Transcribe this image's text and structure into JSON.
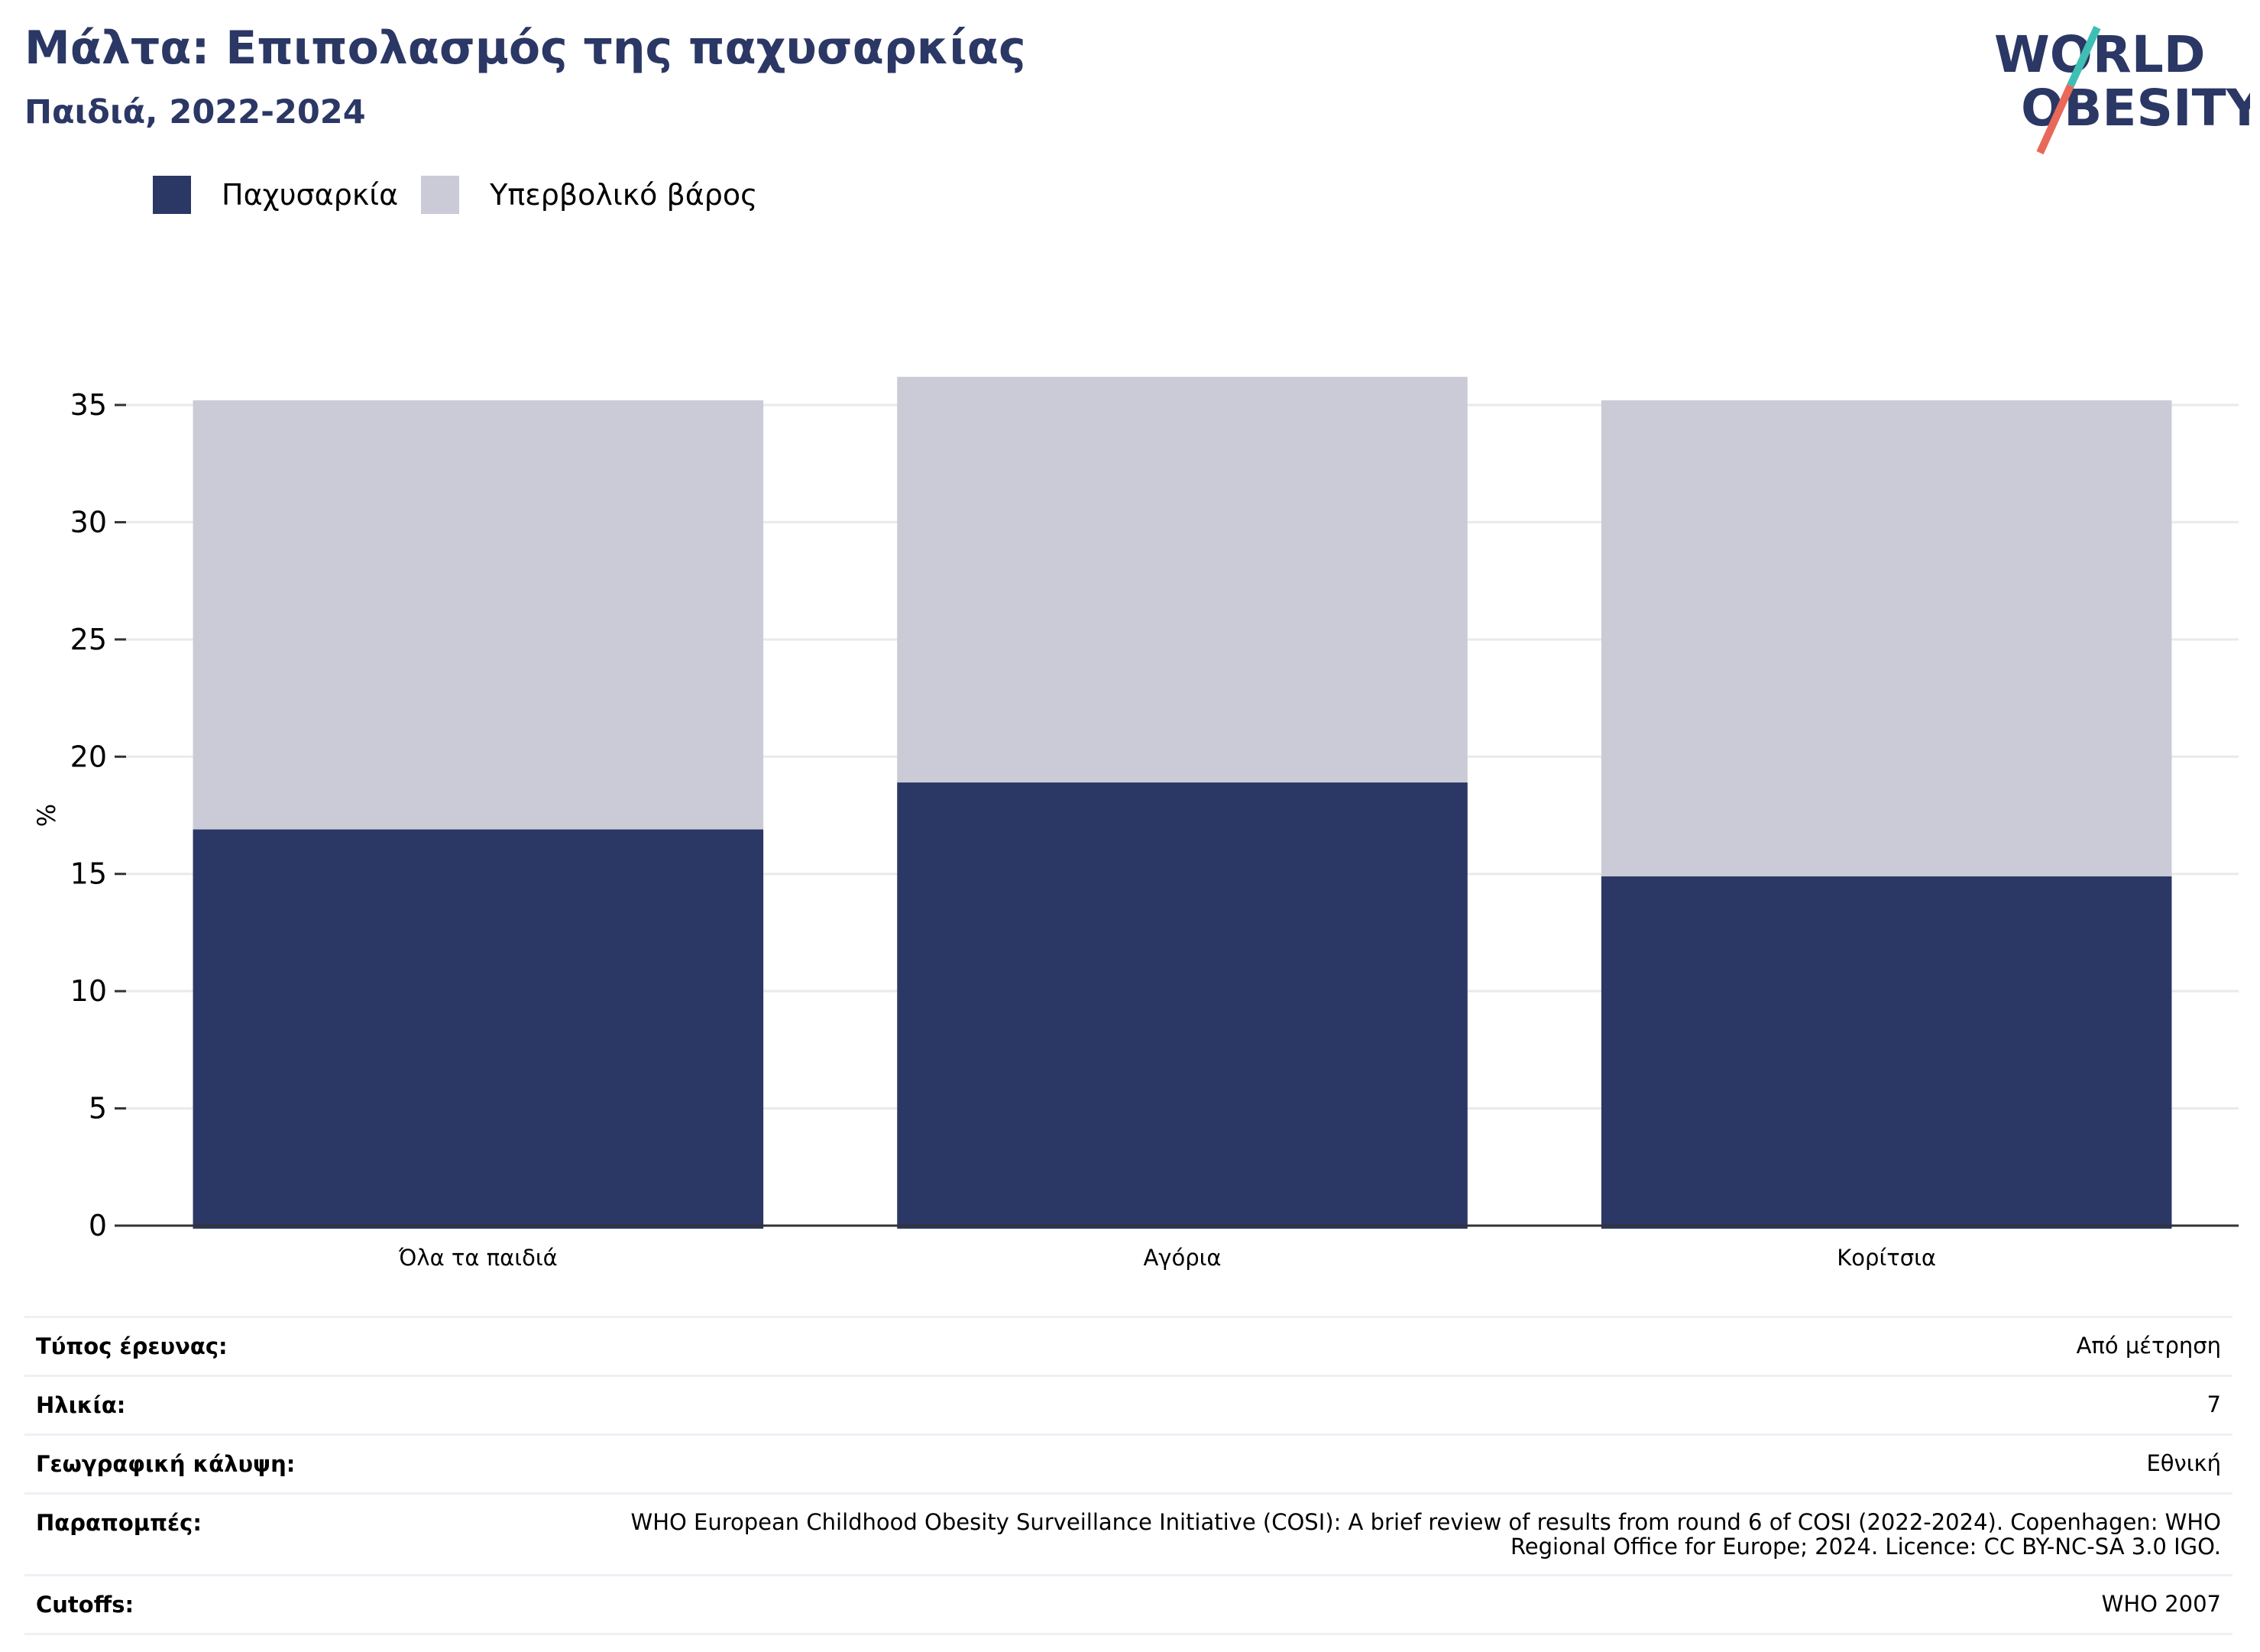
{
  "header": {
    "title": "Μάλτα: Επιπολασμός της παχυσαρκίας",
    "subtitle": "Παιδιά, 2022-2024"
  },
  "logo": {
    "line1": "WORLD",
    "line2": "OBESITY",
    "color_text": "#2b3764",
    "color_accent1": "#3fbfb3",
    "color_accent2": "#e8695a"
  },
  "colors": {
    "obesity": "#2b3764",
    "overweight": "#cacbd7",
    "grid": "#e9e9ee",
    "axis": "#333333"
  },
  "chart_data": {
    "type": "bar",
    "stacked": true,
    "categories": [
      "Όλα τα παιδιά",
      "Αγόρια",
      "Κορίτσια"
    ],
    "series": [
      {
        "name": "Παχυσαρκία",
        "values": [
          16.9,
          18.9,
          14.9
        ]
      },
      {
        "name": "Υπερβολικό βάρος",
        "values": [
          18.3,
          17.3,
          20.3
        ]
      }
    ],
    "ylabel": "%",
    "ylim": [
      0,
      35
    ],
    "yticks": [
      0,
      5,
      10,
      15,
      20,
      25,
      30,
      35
    ],
    "grid": true,
    "legend": "top-left"
  },
  "meta": [
    {
      "label": "Τύπος έρευνας:",
      "value": "Από μέτρηση"
    },
    {
      "label": "Ηλικία:",
      "value": "7"
    },
    {
      "label": "Γεωγραφική κάλυψη:",
      "value": "Εθνική"
    },
    {
      "label": "Παραπομπές:",
      "value": "WHO European Childhood Obesity Surveillance Initiative (COSI): A brief review of results from round 6 of COSI (2022-2024). Copenhagen: WHO Regional Office for Europe; 2024. Licence: CC BY-NC-SA 3.0 IGO."
    },
    {
      "label": "Cutoffs:",
      "value": "WHO 2007"
    }
  ]
}
